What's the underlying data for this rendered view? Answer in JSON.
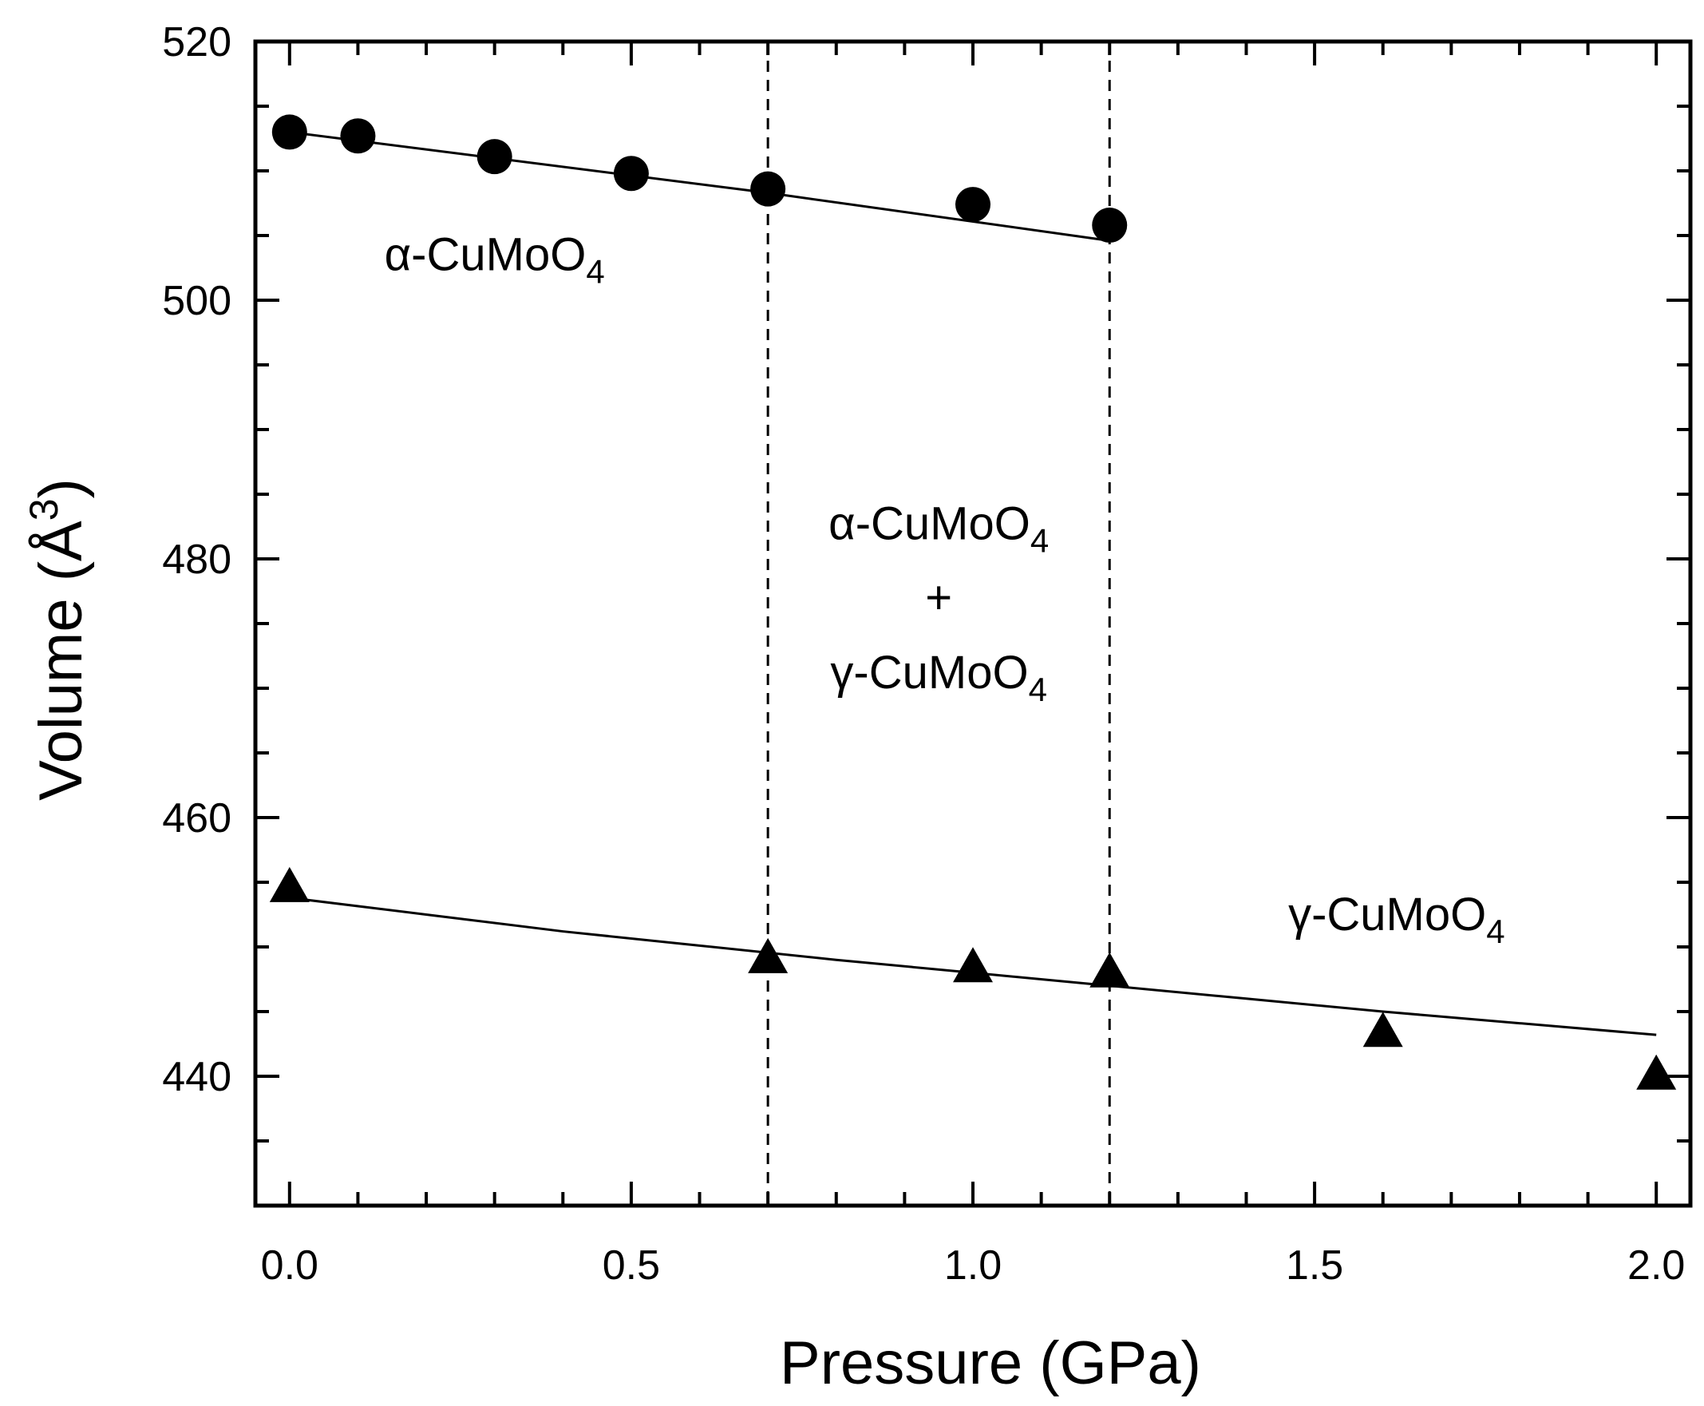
{
  "chart_data": {
    "type": "scatter",
    "title": "",
    "xlabel": "Pressure (GPa)",
    "ylabel": {
      "main": "Volume (Å",
      "sup": "3",
      "end": ")"
    },
    "xlim": [
      -0.05,
      2.05
    ],
    "ylim": [
      430,
      520
    ],
    "xticks": [
      0.0,
      0.5,
      1.0,
      1.5,
      2.0
    ],
    "xtick_labels": [
      "0.0",
      "0.5",
      "1.0",
      "1.5",
      "2.0"
    ],
    "xminor_step": 0.1,
    "yticks": [
      440,
      460,
      480,
      500,
      520
    ],
    "ytick_labels": [
      "440",
      "460",
      "480",
      "500",
      "520"
    ],
    "yminor_step": 5,
    "grid": false,
    "series": [
      {
        "name": "α-CuMoO4",
        "marker": "circle",
        "color": "#000000",
        "x": [
          0.0,
          0.1,
          0.3,
          0.5,
          0.7,
          1.0,
          1.2
        ],
        "y": [
          513.0,
          512.7,
          511.1,
          509.8,
          508.6,
          507.4,
          505.8
        ],
        "fit": {
          "x": [
            0.0,
            0.7,
            1.2
          ],
          "y": [
            513.0,
            508.3,
            504.6
          ]
        }
      },
      {
        "name": "γ-CuMoO4",
        "marker": "triangle",
        "color": "#000000",
        "x": [
          0.0,
          0.7,
          1.0,
          1.2,
          1.6,
          2.0
        ],
        "y": [
          454.5,
          449.0,
          448.3,
          447.9,
          443.3,
          440.0
        ],
        "fit": {
          "x": [
            0.0,
            0.2,
            0.4,
            0.6,
            0.8,
            1.0,
            1.2,
            1.4,
            1.6,
            1.8,
            2.0
          ],
          "y": [
            453.8,
            452.5,
            451.2,
            450.1,
            449.0,
            448.0,
            447.0,
            446.0,
            445.0,
            444.1,
            443.2
          ]
        }
      }
    ],
    "vlines": [
      0.7,
      1.2
    ],
    "annotations": [
      {
        "id": "alpha",
        "parts": [
          {
            "t": "α-CuMoO"
          },
          {
            "t": "4",
            "sub": true
          }
        ],
        "x": 0.3,
        "y": 502.3,
        "anchor": "middle"
      },
      {
        "id": "mixed-alpha",
        "parts": [
          {
            "t": "α-CuMoO"
          },
          {
            "t": "4",
            "sub": true
          }
        ],
        "x": 0.95,
        "y": 481.5,
        "anchor": "middle"
      },
      {
        "id": "mixed-plus",
        "parts": [
          {
            "t": "+"
          }
        ],
        "x": 0.95,
        "y": 475.8,
        "anchor": "middle"
      },
      {
        "id": "mixed-gamma",
        "parts": [
          {
            "t": "γ-CuMoO"
          },
          {
            "t": "4",
            "sub": true
          }
        ],
        "x": 0.95,
        "y": 470.0,
        "anchor": "middle"
      },
      {
        "id": "gamma",
        "parts": [
          {
            "t": "γ-CuMoO"
          },
          {
            "t": "4",
            "sub": true
          }
        ],
        "x": 1.62,
        "y": 451.3,
        "anchor": "middle"
      }
    ]
  }
}
